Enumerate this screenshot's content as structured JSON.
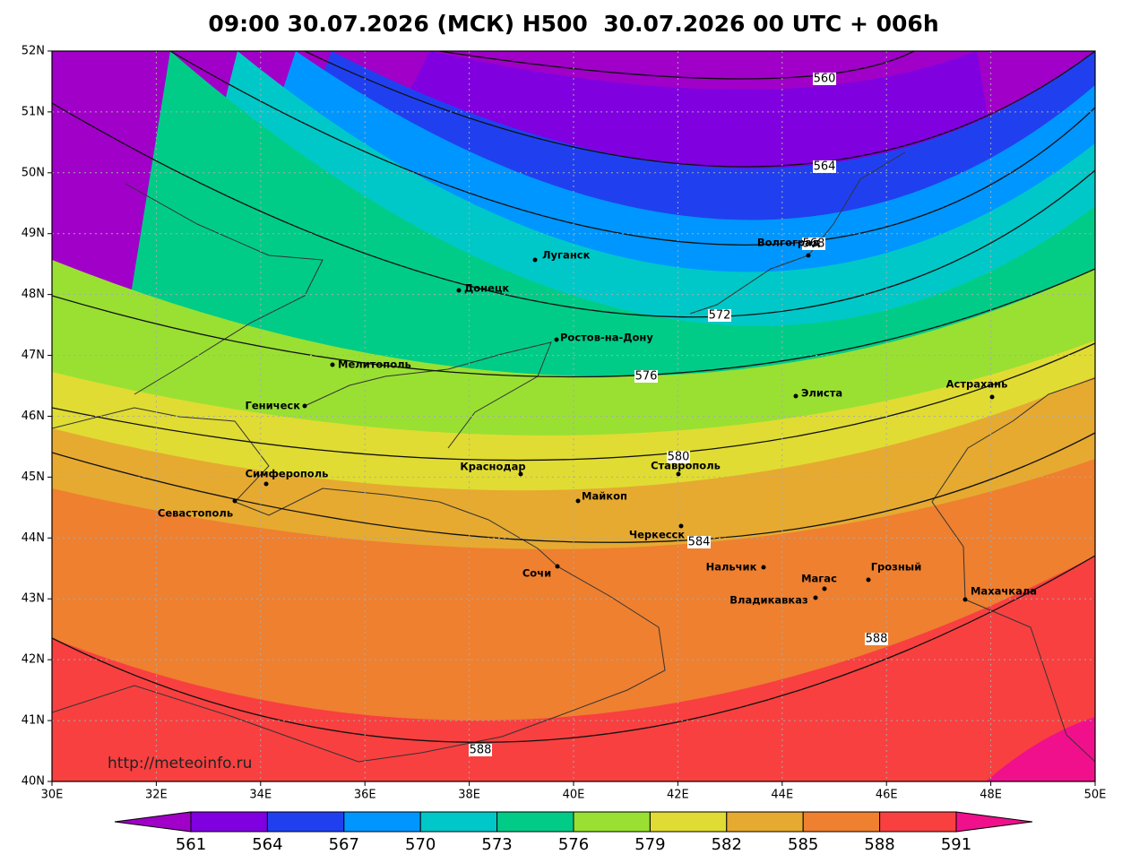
{
  "title": "09:00 30.07.2026 (МСК) H500  30.07.2026 00 UTC + 006h",
  "x_labels": [
    "30E",
    "32E",
    "34E",
    "36E",
    "38E",
    "40E",
    "42E",
    "44E",
    "46E",
    "48E",
    "50E"
  ],
  "y_labels": [
    "40N",
    "41N",
    "42N",
    "43N",
    "44N",
    "45N",
    "46N",
    "47N",
    "48N",
    "49N",
    "50N",
    "51N",
    "52N"
  ],
  "contour_labels": [
    560,
    564,
    568,
    572,
    576,
    580,
    584,
    588,
    588
  ],
  "cities": [
    "Луганск",
    "Донецк",
    "Ростов-на-Дону",
    "Мелитополь",
    "Геническ",
    "Элиста",
    "Астрахань",
    "Симферополь",
    "Севастополь",
    "Краснодар",
    "Ставрополь",
    "Майкоп",
    "Черкесск",
    "Сочи",
    "Нальчик",
    "Магас",
    "Грозный",
    "Владикавказ",
    "Махачкала",
    "Волгоград"
  ],
  "watermark": "http://meteoinfo.ru",
  "colorbar": {
    "colors": [
      "#a000c8",
      "#8000e0",
      "#2040f0",
      "#0096ff",
      "#00c8c8",
      "#00cc88",
      "#99e033",
      "#e0dc33",
      "#e6aa30",
      "#ee8030",
      "#f84040",
      "#f0108c"
    ],
    "ticks": [
      561,
      564,
      567,
      570,
      573,
      576,
      579,
      582,
      585,
      588,
      591
    ]
  }
}
